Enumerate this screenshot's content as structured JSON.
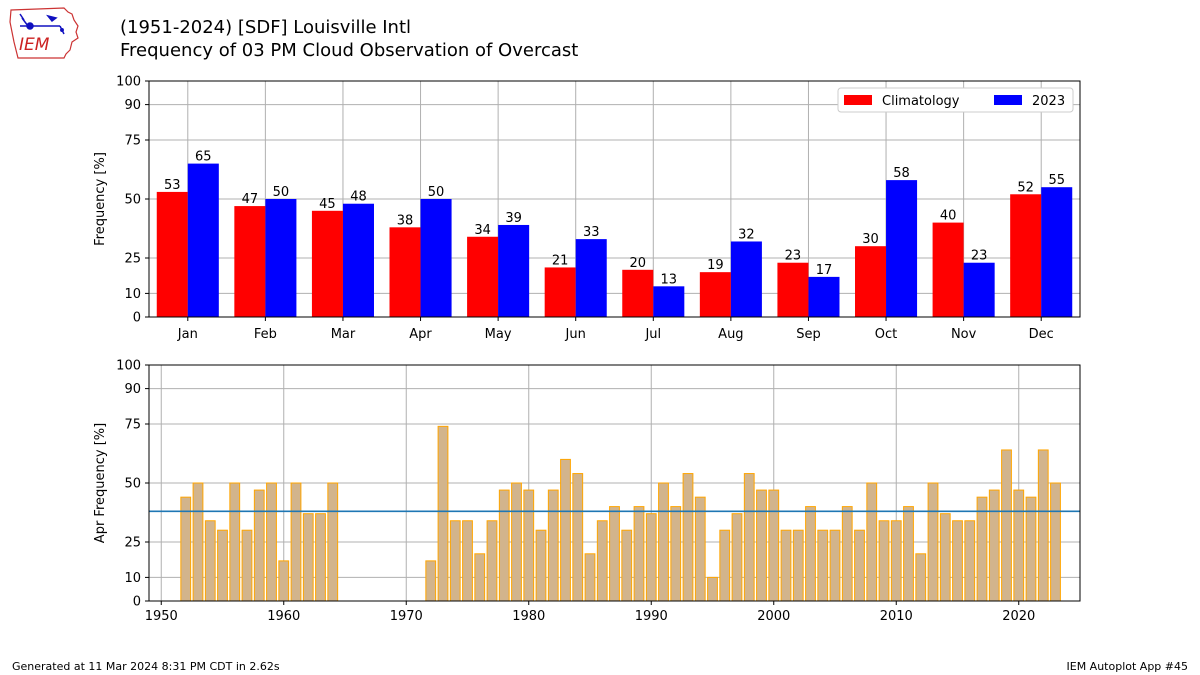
{
  "header": {
    "title_line1": "(1951-2024) [SDF] Louisville Intl",
    "title_line2": "Frequency of 03 PM Cloud Observation of Overcast",
    "logo_text": "IEM"
  },
  "footer": {
    "generated": "Generated at 11 Mar 2024 8:31 PM CDT in 2.62s",
    "app": "IEM Autoplot App #45"
  },
  "colors": {
    "climatology": "#ff0000",
    "current": "#0000ff",
    "annual_fill": "#d2b48c",
    "annual_edge": "#ffa500",
    "avg_line": "#1f77b4",
    "grid": "#b0b0b0"
  },
  "chart_data": [
    {
      "type": "bar",
      "categories": [
        "Jan",
        "Feb",
        "Mar",
        "Apr",
        "May",
        "Jun",
        "Jul",
        "Aug",
        "Sep",
        "Oct",
        "Nov",
        "Dec"
      ],
      "series": [
        {
          "name": "Climatology",
          "values": [
            53,
            47,
            45,
            38,
            34,
            21,
            20,
            19,
            23,
            30,
            40,
            52
          ]
        },
        {
          "name": "2023",
          "values": [
            65,
            50,
            48,
            50,
            39,
            33,
            13,
            32,
            17,
            58,
            23,
            55
          ]
        }
      ],
      "ylabel": "Frequency [%]",
      "ylim": [
        0,
        100
      ],
      "yticks": [
        0,
        10,
        25,
        50,
        75,
        90,
        100
      ],
      "grid": true,
      "legend": "top-right",
      "data_labels": true
    },
    {
      "type": "bar",
      "x": [
        1952,
        1953,
        1954,
        1955,
        1956,
        1957,
        1958,
        1959,
        1960,
        1961,
        1962,
        1963,
        1964,
        1972,
        1973,
        1974,
        1975,
        1976,
        1977,
        1978,
        1979,
        1980,
        1981,
        1982,
        1983,
        1984,
        1985,
        1986,
        1987,
        1988,
        1989,
        1990,
        1991,
        1992,
        1993,
        1994,
        1995,
        1996,
        1997,
        1998,
        1999,
        2000,
        2001,
        2002,
        2003,
        2004,
        2005,
        2006,
        2007,
        2008,
        2009,
        2010,
        2011,
        2012,
        2013,
        2014,
        2015,
        2016,
        2017,
        2018,
        2019,
        2020,
        2021,
        2022,
        2023
      ],
      "values": [
        44,
        50,
        34,
        30,
        50,
        30,
        47,
        50,
        17,
        50,
        37,
        37,
        50,
        17,
        74,
        34,
        34,
        20,
        34,
        47,
        50,
        47,
        30,
        47,
        60,
        54,
        20,
        34,
        40,
        30,
        40,
        37,
        50,
        40,
        54,
        44,
        10,
        30,
        37,
        54,
        47,
        47,
        30,
        30,
        40,
        30,
        30,
        40,
        30,
        50,
        34,
        34,
        40,
        20,
        50,
        37,
        34,
        34,
        44,
        47,
        64,
        47,
        44,
        64,
        50
      ],
      "average": 38,
      "ylabel": "Apr Frequency [%]",
      "xlim": [
        1949,
        2025
      ],
      "xticks": [
        1950,
        1960,
        1970,
        1980,
        1990,
        2000,
        2010,
        2020
      ],
      "ylim": [
        0,
        100
      ],
      "yticks": [
        0,
        10,
        25,
        50,
        75,
        90,
        100
      ],
      "grid": true
    }
  ]
}
